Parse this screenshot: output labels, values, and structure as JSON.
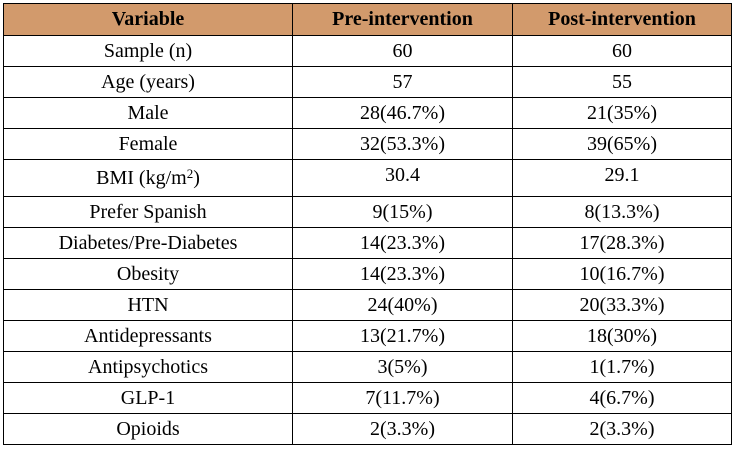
{
  "table": {
    "headers": [
      "Variable",
      "Pre-intervention",
      "Post-intervention"
    ],
    "rows": [
      {
        "variable": "Sample (n)",
        "pre": "60",
        "post": "60"
      },
      {
        "variable": "Age (years)",
        "pre": "57",
        "post": "55"
      },
      {
        "variable": "Male",
        "pre": "28(46.7%)",
        "post": "21(35%)"
      },
      {
        "variable": "Female",
        "pre": "32(53.3%)",
        "post": "39(65%)"
      },
      {
        "variable": "BMI (kg/m",
        "variable_sup": "2",
        "variable_suffix": ")",
        "pre": "30.4",
        "post": "29.1"
      },
      {
        "variable": "Prefer Spanish",
        "pre": "9(15%)",
        "post": "8(13.3%)"
      },
      {
        "variable": "Diabetes/Pre-Diabetes",
        "pre": "14(23.3%)",
        "post": "17(28.3%)"
      },
      {
        "variable": "Obesity",
        "pre": "14(23.3%)",
        "post": "10(16.7%)"
      },
      {
        "variable": "HTN",
        "pre": "24(40%)",
        "post": "20(33.3%)"
      },
      {
        "variable": "Antidepressants",
        "pre": "13(21.7%)",
        "post": "18(30%)"
      },
      {
        "variable": "Antipsychotics",
        "pre": "3(5%)",
        "post": "1(1.7%)"
      },
      {
        "variable": "GLP-1",
        "pre": "7(11.7%)",
        "post": "4(6.7%)"
      },
      {
        "variable": "Opioids",
        "pre": "2(3.3%)",
        "post": "2(3.3%)"
      }
    ]
  },
  "colors": {
    "header_background": "#d29a6c",
    "border": "#000000"
  }
}
